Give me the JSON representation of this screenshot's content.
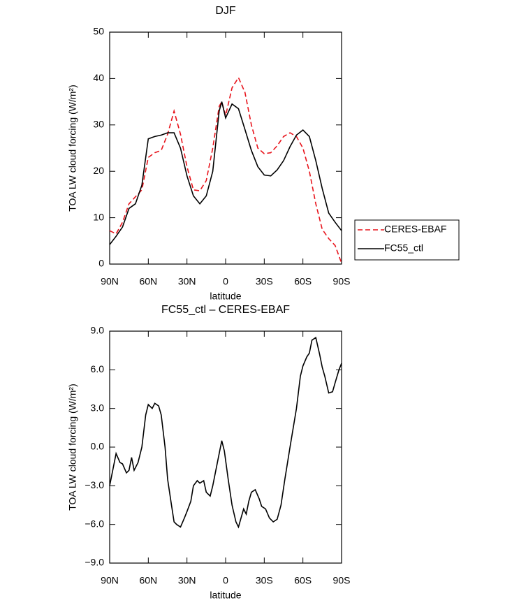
{
  "chart_data": [
    {
      "type": "line",
      "title": "DJF",
      "xlabel": "latitude",
      "ylabel": "TOA LW cloud forcing (W/m²)",
      "xlim": [
        90,
        -90
      ],
      "xticks": [
        {
          "value": 90,
          "label": "90N"
        },
        {
          "value": 60,
          "label": "60N"
        },
        {
          "value": 30,
          "label": "30N"
        },
        0,
        {
          "value": -30,
          "label": "30S"
        },
        {
          "value": -60,
          "label": "60S"
        },
        {
          "value": -90,
          "label": "90S"
        }
      ],
      "ylim": [
        0,
        50
      ],
      "yticks": [
        0,
        10,
        20,
        30,
        40,
        50
      ],
      "legend": "right",
      "x": [
        90,
        85,
        80,
        75,
        70,
        65,
        60,
        55,
        50,
        45,
        40,
        35,
        30,
        25,
        20,
        15,
        10,
        5,
        3,
        0,
        -5,
        -10,
        -15,
        -20,
        -25,
        -30,
        -35,
        -40,
        -45,
        -50,
        -55,
        -60,
        -65,
        -70,
        -75,
        -80,
        -85,
        -90
      ],
      "series": [
        {
          "name": "CERES-EBAF",
          "color": "#e8141c",
          "linestyle": "dashed",
          "values": [
            7.2,
            6.5,
            9,
            13,
            14.5,
            16,
            23,
            24,
            24.5,
            28,
            33,
            28,
            21,
            16,
            15.8,
            18,
            25,
            34,
            35,
            32,
            38,
            40.2,
            37,
            30,
            25,
            23.8,
            24,
            25.5,
            27.5,
            28.3,
            27.5,
            25,
            20,
            13,
            7.5,
            5.5,
            4,
            0.2
          ]
        },
        {
          "name": "FC55_ctl",
          "color": "#000000",
          "linestyle": "solid",
          "values": [
            4.2,
            6,
            8,
            12,
            13,
            17,
            27,
            27.5,
            27.8,
            28.3,
            28.3,
            25,
            19,
            14.7,
            13,
            14.7,
            20,
            33,
            35,
            31.5,
            34.5,
            33.5,
            29,
            24.5,
            21,
            19.2,
            19,
            20.3,
            22.3,
            25.3,
            27.8,
            28.9,
            27.5,
            22.3,
            16.3,
            11,
            9,
            7.2
          ]
        }
      ]
    },
    {
      "type": "line",
      "title": "FC55_ctl – CERES-EBAF",
      "xlabel": "latitude",
      "ylabel": "TOA LW cloud forcing (W/m²)",
      "xlim": [
        90,
        -90
      ],
      "xticks": [
        {
          "value": 90,
          "label": "90N"
        },
        {
          "value": 60,
          "label": "60N"
        },
        {
          "value": 30,
          "label": "30N"
        },
        0,
        {
          "value": -30,
          "label": "30S"
        },
        {
          "value": -60,
          "label": "60S"
        },
        {
          "value": -90,
          "label": "90S"
        }
      ],
      "ylim": [
        -9,
        9
      ],
      "yticks": [
        {
          "value": -9,
          "label": "−9.0"
        },
        {
          "value": -6,
          "label": "−6.0"
        },
        {
          "value": -3,
          "label": "−3.0"
        },
        {
          "value": 0,
          "label": "0.0"
        },
        {
          "value": 3,
          "label": "3.0"
        },
        {
          "value": 6,
          "label": "6.0"
        },
        {
          "value": 9,
          "label": "9.0"
        }
      ],
      "x": [
        90,
        87,
        85,
        82,
        80,
        77,
        75,
        73,
        71,
        68,
        65,
        62,
        60,
        57,
        55,
        52,
        50,
        47,
        45,
        42,
        40,
        38,
        35,
        32,
        30,
        27,
        25,
        22,
        20,
        17,
        15,
        12,
        10,
        7,
        5,
        3,
        1,
        -2,
        -5,
        -8,
        -10,
        -12,
        -14,
        -16,
        -18,
        -20,
        -23,
        -26,
        -28,
        -31,
        -34,
        -37,
        -40,
        -43,
        -46,
        -50,
        -55,
        -58,
        -60,
        -63,
        -65,
        -67,
        -70,
        -73,
        -75,
        -77,
        -80,
        -83,
        -85,
        -88,
        -90
      ],
      "series": [
        {
          "name": "FC55_ctl – CERES-EBAF",
          "color": "#000000",
          "linestyle": "solid",
          "values": [
            -3,
            -1.5,
            -0.5,
            -1.2,
            -1.3,
            -2,
            -1.8,
            -0.8,
            -1.8,
            -1.2,
            0,
            2.5,
            3.3,
            3,
            3.4,
            3.2,
            2.5,
            0,
            -2.5,
            -4.5,
            -5.8,
            -6,
            -6.2,
            -5.5,
            -5,
            -4.2,
            -3,
            -2.6,
            -2.8,
            -2.6,
            -3.5,
            -3.8,
            -3,
            -1.5,
            -0.5,
            0.5,
            -0.3,
            -2.5,
            -4.5,
            -5.8,
            -6.2,
            -5.5,
            -4.8,
            -5.2,
            -4.2,
            -3.5,
            -3.3,
            -4,
            -4.6,
            -4.8,
            -5.5,
            -5.8,
            -5.6,
            -4.5,
            -2.5,
            0,
            3,
            5.5,
            6.3,
            7,
            7.3,
            8.3,
            8.5,
            7.2,
            6.2,
            5.5,
            4.2,
            4.3,
            5,
            6,
            6.5
          ]
        }
      ]
    }
  ]
}
